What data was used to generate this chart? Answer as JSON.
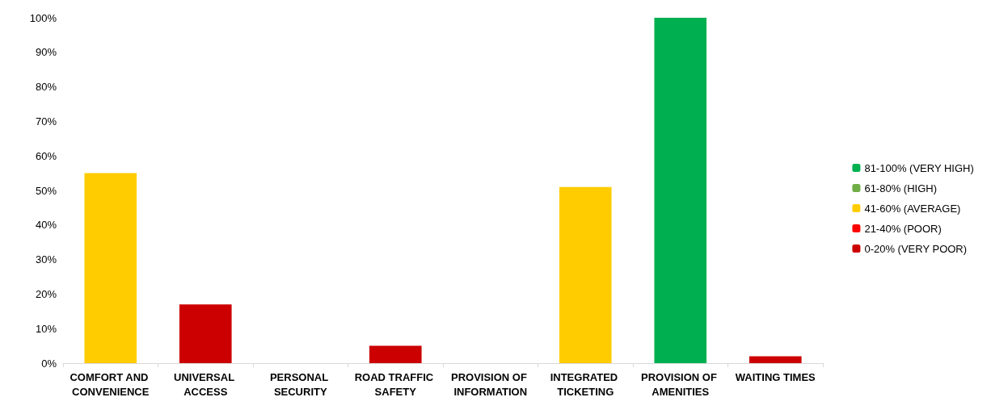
{
  "chart_data": {
    "type": "bar",
    "stacked": true,
    "categories": [
      "COMFORT AND CONVENIENCE",
      "UNIVERSAL ACCESS",
      "PERSONAL SECURITY",
      "ROAD TRAFFIC SAFETY",
      "PROVISION OF INFORMATION",
      "INTEGRATED TICKETING",
      "PROVISION OF AMENITIES",
      "WAITING TIMES"
    ],
    "series": [
      {
        "name": "81-100% (VERY HIGH)",
        "color": "#00b050",
        "values": [
          null,
          null,
          null,
          null,
          null,
          null,
          100,
          null
        ]
      },
      {
        "name": "61-80% (HIGH)",
        "color": "#70ad47",
        "values": [
          null,
          null,
          null,
          null,
          null,
          null,
          null,
          null
        ]
      },
      {
        "name": "41-60% (AVERAGE)",
        "color": "#ffcc00",
        "values": [
          55,
          null,
          null,
          null,
          null,
          51,
          null,
          null
        ]
      },
      {
        "name": "21-40% (POOR)",
        "color": "#ff0000",
        "values": [
          null,
          null,
          null,
          null,
          null,
          null,
          null,
          null
        ]
      },
      {
        "name": "0-20% (VERY POOR)",
        "color": "#cc0000",
        "values": [
          null,
          17,
          null,
          5,
          null,
          null,
          null,
          2
        ]
      }
    ],
    "ylim": [
      0,
      100
    ],
    "yticks": [
      {
        "value": 0,
        "label": "0%"
      },
      {
        "value": 10,
        "label": "10%"
      },
      {
        "value": 20,
        "label": "20%"
      },
      {
        "value": 30,
        "label": "30%"
      },
      {
        "value": 40,
        "label": "40%"
      },
      {
        "value": 50,
        "label": "50%"
      },
      {
        "value": 60,
        "label": "60%"
      },
      {
        "value": 70,
        "label": "70%"
      },
      {
        "value": 80,
        "label": "80%"
      },
      {
        "value": 90,
        "label": "90%"
      },
      {
        "value": 100,
        "label": "100%"
      }
    ],
    "grid": false,
    "legend": "right"
  }
}
